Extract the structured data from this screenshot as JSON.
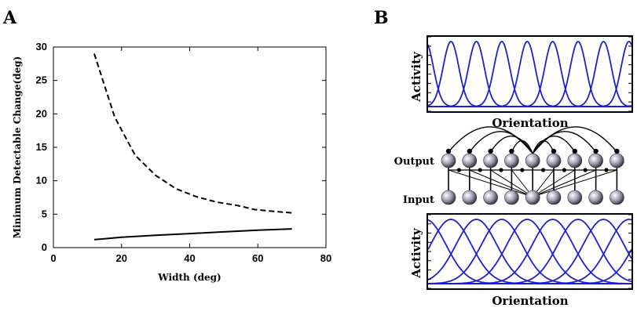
{
  "panels": {
    "a_label": "A",
    "b_label": "B"
  },
  "chart_data": [
    {
      "type": "line",
      "xlabel": "Width (deg)",
      "ylabel": "Minimum Detectable Change(deg)",
      "xlim": [
        0,
        80
      ],
      "ylim": [
        0,
        30
      ],
      "xticks": [
        "0",
        "20",
        "40",
        "60",
        "80"
      ],
      "yticks": [
        "0",
        "5",
        "10",
        "15",
        "20",
        "25",
        "30"
      ],
      "grid": false,
      "series": [
        {
          "style": "dashed",
          "x": [
            12,
            18,
            24,
            30,
            36,
            42,
            48,
            54,
            59,
            65,
            70
          ],
          "y": [
            29,
            19.5,
            13.8,
            10.8,
            8.8,
            7.6,
            6.8,
            6.3,
            5.7,
            5.4,
            5.2
          ]
        },
        {
          "style": "solid",
          "x": [
            12,
            20,
            30,
            40,
            50,
            60,
            70
          ],
          "y": [
            1.2,
            1.55,
            1.85,
            2.1,
            2.35,
            2.6,
            2.8
          ]
        }
      ]
    },
    {
      "type": "line",
      "xlabel": "Orientation",
      "ylabel": "Activity",
      "description_units": "tuning curves",
      "num_curves": 9,
      "curve_width": "narrow",
      "color": "#1f1fcf"
    },
    {
      "type": "line",
      "xlabel": "Orientation",
      "ylabel": "Activity",
      "num_curves": 9,
      "curve_width": "broad",
      "color": "#1f1fcf"
    }
  ],
  "network": {
    "output_label": "Output",
    "input_label": "Input",
    "units_per_layer": 9
  }
}
